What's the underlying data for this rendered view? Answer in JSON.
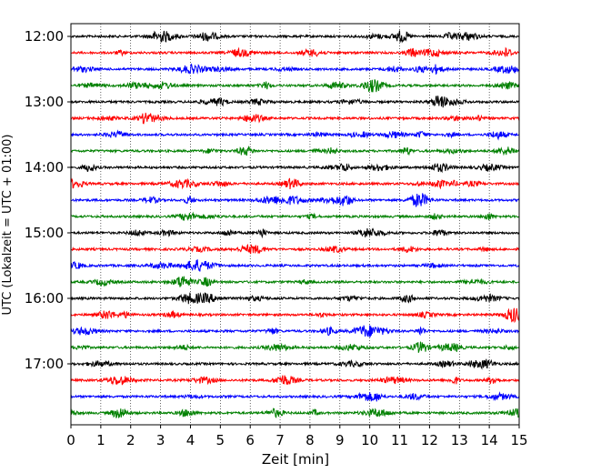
{
  "chart_data": {
    "type": "line",
    "title": "",
    "xlabel": "Zeit  [min]",
    "ylabel": "UTC (Lokalzeit = UTC + 01:00)",
    "xlim": [
      0,
      15
    ],
    "x_ticks": [
      0,
      1,
      2,
      3,
      4,
      5,
      6,
      7,
      8,
      9,
      10,
      11,
      12,
      13,
      14,
      15
    ],
    "x_tick_labels": [
      "0",
      "1",
      "2",
      "3",
      "4",
      "5",
      "6",
      "7",
      "8",
      "9",
      "10",
      "11",
      "12",
      "13",
      "14",
      "15"
    ],
    "y_tick_labels": [
      "12:00",
      "13:00",
      "14:00",
      "15:00",
      "16:00",
      "17:00"
    ],
    "grid": "vertical-dotted",
    "trace_interval_min": 15,
    "trace_count": 24,
    "trace_colors": [
      "#000000",
      "#ff0000",
      "#0000ff",
      "#008000"
    ],
    "legend": "none"
  }
}
